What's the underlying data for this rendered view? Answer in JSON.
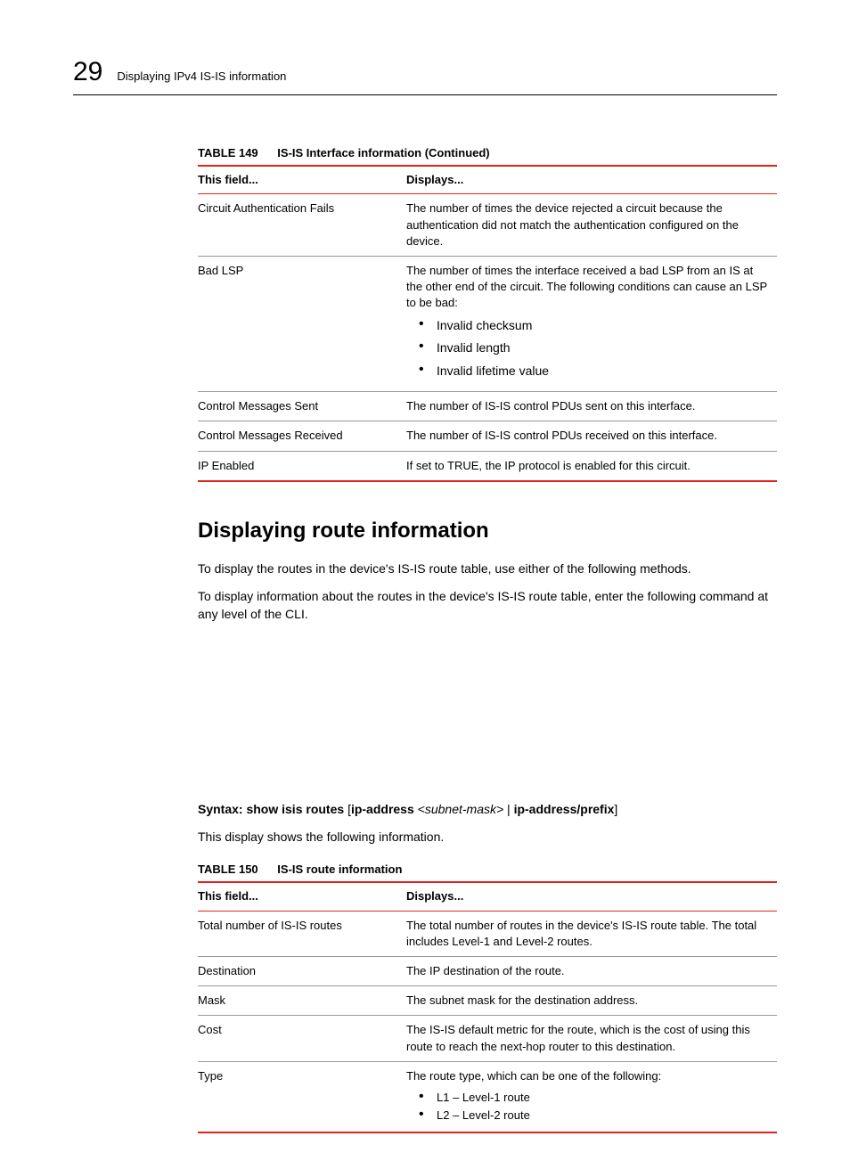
{
  "header": {
    "chapter_number": "29",
    "running_title": "Displaying IPv4 IS-IS information"
  },
  "table149": {
    "label": "TABLE 149",
    "title": "IS-IS Interface information  (Continued)",
    "columns": [
      "This field...",
      "Displays..."
    ],
    "rows": {
      "r0": {
        "field": "Circuit Authentication Fails",
        "text": "The number of times the device rejected a circuit because the authentication did not match the authentication configured on the device."
      },
      "r1": {
        "field": "Bad LSP",
        "text": "The number of times the interface received a bad LSP from an IS at the other end of the circuit.  The following conditions can cause an LSP to be bad:",
        "b0": "Invalid checksum",
        "b1": "Invalid length",
        "b2": "Invalid lifetime value"
      },
      "r2": {
        "field": "Control Messages Sent",
        "text": "The number of IS-IS control PDUs sent on this interface."
      },
      "r3": {
        "field": "Control Messages Received",
        "text": "The number of IS-IS control PDUs received on this interface."
      },
      "r4": {
        "field": "IP Enabled",
        "text": "If set to TRUE, the IP protocol is enabled for this circuit."
      }
    }
  },
  "section": {
    "heading": "Displaying route information",
    "p1": "To display the routes in the device's IS-IS route table, use either of the following methods.",
    "p2": "To display information about the routes in the device's IS-IS route table, enter the following command at any level of the CLI."
  },
  "syntax": {
    "lead": "Syntax:  show isis routes",
    "open": "[",
    "ip1": "ip-address",
    "mask": " <subnet-mask>",
    "sep": " | ",
    "ip2": "ip-address/prefix",
    "close": "]"
  },
  "after_syntax": "This display shows the following information.",
  "table150": {
    "label": "TABLE 150",
    "title": "IS-IS route information",
    "columns": [
      "This field...",
      "Displays..."
    ],
    "rows": {
      "r0": {
        "field": "Total number of IS-IS routes",
        "text": "The total number of routes in the device's IS-IS route table. The total includes Level-1 and Level-2 routes."
      },
      "r1": {
        "field": "Destination",
        "text": "The IP destination of the route."
      },
      "r2": {
        "field": "Mask",
        "text": "The subnet mask for the destination address."
      },
      "r3": {
        "field": "Cost",
        "text": "The IS-IS default metric for the route, which is the cost of using this route to reach the next-hop router to this destination."
      },
      "r4": {
        "field": "Type",
        "text": "The route type, which can be one of the following:",
        "b0": "L1 – Level-1 route",
        "b1": "L2 – Level-2 route"
      }
    }
  }
}
